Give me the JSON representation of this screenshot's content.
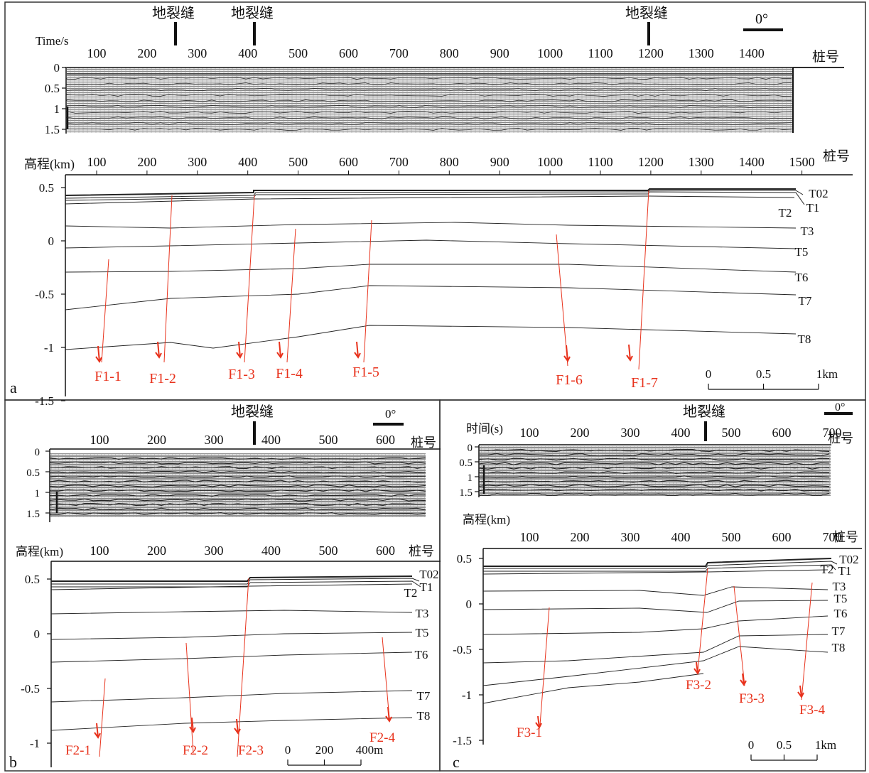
{
  "labels": {
    "ground_fissure": "地裂缝",
    "time_s": "Time/s",
    "time_cn": "时间(s)",
    "elevation_km": "高程(km)",
    "station_no": "桩号",
    "dip_angle": "0°",
    "panel_a": "a",
    "panel_b": "b",
    "panel_c": "c"
  },
  "panel_a": {
    "station_ticks": [
      "100",
      "200",
      "300",
      "400",
      "500",
      "600",
      "700",
      "800",
      "900",
      "1000",
      "1100",
      "1200",
      "1300",
      "1400"
    ],
    "station_ticks_lower": [
      "100",
      "200",
      "300",
      "400",
      "500",
      "600",
      "700",
      "800",
      "900",
      "1000",
      "1100",
      "1200",
      "1300",
      "1400",
      "1500"
    ],
    "time_ticks": [
      "0",
      "0.5",
      "1",
      "1.5"
    ],
    "elev_ticks": [
      "0.5",
      "0",
      "-0.5",
      "-1",
      "-1.5"
    ],
    "fissure_count": 3,
    "horizons": [
      "T02",
      "T1",
      "T2",
      "T3",
      "T5",
      "T6",
      "T7",
      "T8"
    ],
    "faults": [
      "F1-1",
      "F1-2",
      "F1-3",
      "F1-4",
      "F1-5",
      "F1-6",
      "F1-7"
    ],
    "scale": {
      "zero": "0",
      "mid": "0.5",
      "end": "1km"
    }
  },
  "panel_b": {
    "station_ticks": [
      "100",
      "200",
      "300",
      "400",
      "500",
      "600"
    ],
    "time_ticks": [
      "0",
      "0.5",
      "1",
      "1.5"
    ],
    "elev_ticks": [
      "0.5",
      "0",
      "-0.5",
      "-1"
    ],
    "horizons": [
      "T02",
      "T1",
      "T2",
      "T3",
      "T5",
      "T6",
      "T7",
      "T8"
    ],
    "faults": [
      "F2-1",
      "F2-2",
      "F2-3",
      "F2-4"
    ],
    "scale": {
      "zero": "0",
      "mid": "200",
      "end": "400m"
    }
  },
  "panel_c": {
    "station_ticks": [
      "100",
      "200",
      "300",
      "400",
      "500",
      "600",
      "700"
    ],
    "time_ticks": [
      "0",
      "0.5",
      "1",
      "1.5"
    ],
    "elev_ticks": [
      "0.5",
      "0",
      "-0.5",
      "-1",
      "-1.5"
    ],
    "horizons": [
      "T02",
      "T1",
      "T2",
      "T3",
      "T5",
      "T6",
      "T7",
      "T8"
    ],
    "faults": [
      "F3-1",
      "F3-2",
      "F3-3",
      "F3-4"
    ],
    "scale": {
      "zero": "0",
      "mid": "0.5",
      "end": "1km"
    }
  }
}
